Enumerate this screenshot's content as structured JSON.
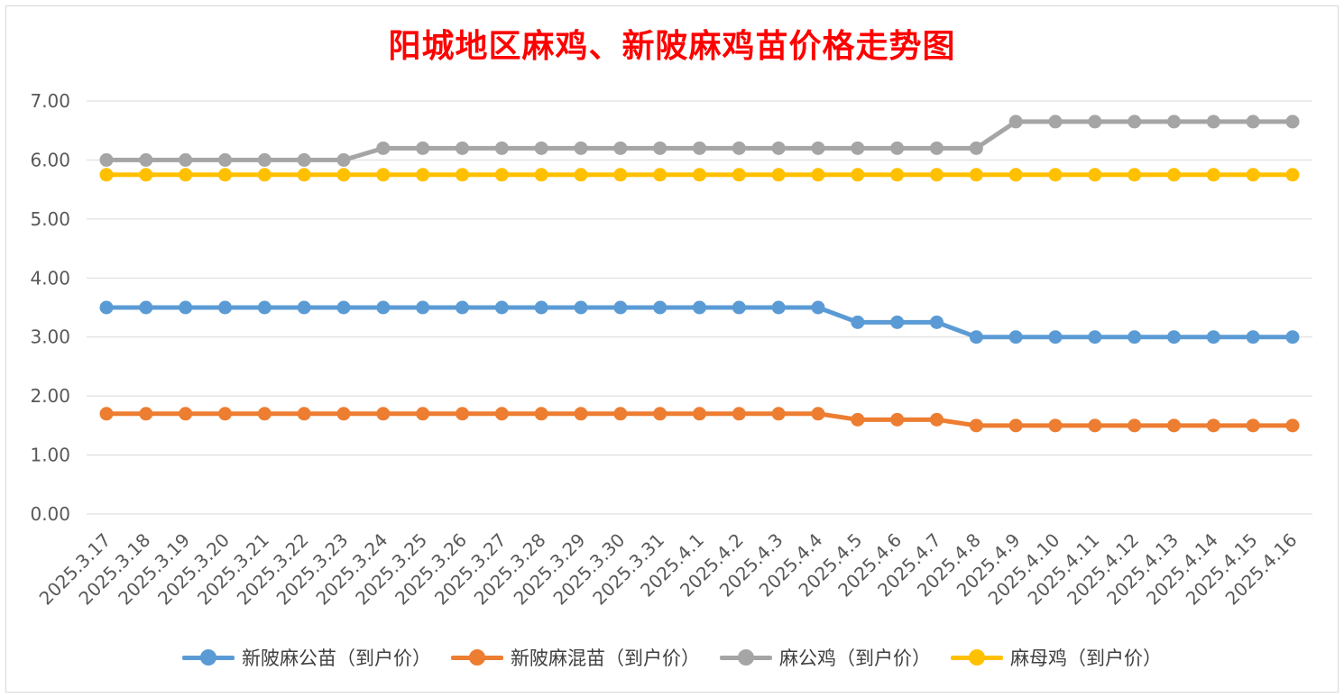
{
  "chart_data": {
    "type": "line",
    "title": "阳城地区麻鸡、新陂麻鸡苗价格走势图",
    "xlabel": "",
    "ylabel": "",
    "ylim": [
      0,
      7
    ],
    "yticks": [
      "0.00",
      "1.00",
      "2.00",
      "3.00",
      "4.00",
      "5.00",
      "6.00",
      "7.00"
    ],
    "grid": true,
    "legend_position": "bottom",
    "categories": [
      "2025.3.17",
      "2025.3.18",
      "2025.3.19",
      "2025.3.20",
      "2025.3.21",
      "2025.3.22",
      "2025.3.23",
      "2025.3.24",
      "2025.3.25",
      "2025.3.26",
      "2025.3.27",
      "2025.3.28",
      "2025.3.29",
      "2025.3.30",
      "2025.3.31",
      "2025.4.1",
      "2025.4.2",
      "2025.4.3",
      "2025.4.4",
      "2025.4.5",
      "2025.4.6",
      "2025.4.7",
      "2025.4.8",
      "2025.4.9",
      "2025.4.10",
      "2025.4.11",
      "2025.4.12",
      "2025.4.13",
      "2025.4.14",
      "2025.4.15",
      "2025.4.16"
    ],
    "series": [
      {
        "name": "新陂麻公苗（到户价）",
        "color": "#5b9bd5",
        "values": [
          3.5,
          3.5,
          3.5,
          3.5,
          3.5,
          3.5,
          3.5,
          3.5,
          3.5,
          3.5,
          3.5,
          3.5,
          3.5,
          3.5,
          3.5,
          3.5,
          3.5,
          3.5,
          3.5,
          3.25,
          3.25,
          3.25,
          3.0,
          3.0,
          3.0,
          3.0,
          3.0,
          3.0,
          3.0,
          3.0,
          3.0
        ]
      },
      {
        "name": "新陂麻混苗（到户价）",
        "color": "#ed7d31",
        "values": [
          1.7,
          1.7,
          1.7,
          1.7,
          1.7,
          1.7,
          1.7,
          1.7,
          1.7,
          1.7,
          1.7,
          1.7,
          1.7,
          1.7,
          1.7,
          1.7,
          1.7,
          1.7,
          1.7,
          1.6,
          1.6,
          1.6,
          1.5,
          1.5,
          1.5,
          1.5,
          1.5,
          1.5,
          1.5,
          1.5,
          1.5
        ]
      },
      {
        "name": "麻公鸡（到户价）",
        "color": "#a5a5a5",
        "values": [
          6.0,
          6.0,
          6.0,
          6.0,
          6.0,
          6.0,
          6.0,
          6.2,
          6.2,
          6.2,
          6.2,
          6.2,
          6.2,
          6.2,
          6.2,
          6.2,
          6.2,
          6.2,
          6.2,
          6.2,
          6.2,
          6.2,
          6.2,
          6.65,
          6.65,
          6.65,
          6.65,
          6.65,
          6.65,
          6.65,
          6.65
        ]
      },
      {
        "name": "麻母鸡（到户价）",
        "color": "#ffc000",
        "values": [
          5.75,
          5.75,
          5.75,
          5.75,
          5.75,
          5.75,
          5.75,
          5.75,
          5.75,
          5.75,
          5.75,
          5.75,
          5.75,
          5.75,
          5.75,
          5.75,
          5.75,
          5.75,
          5.75,
          5.75,
          5.75,
          5.75,
          5.75,
          5.75,
          5.75,
          5.75,
          5.75,
          5.75,
          5.75,
          5.75,
          5.75
        ]
      }
    ]
  }
}
